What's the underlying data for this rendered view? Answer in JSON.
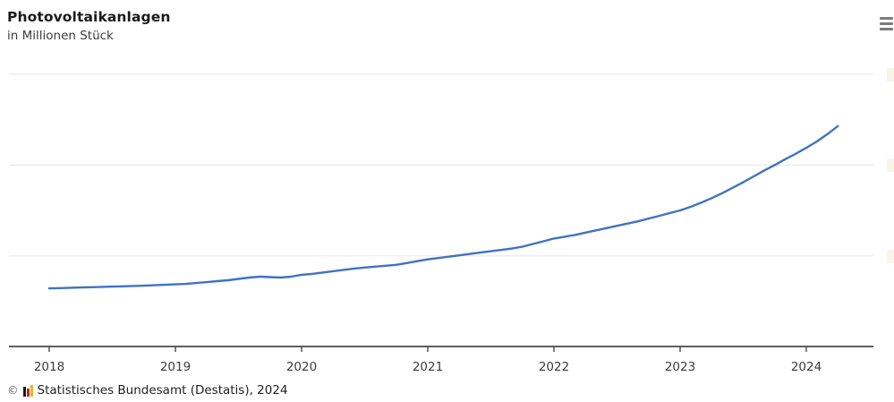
{
  "header": {
    "title": "Photovoltaikanlagen",
    "subtitle": "in Millionen Stück"
  },
  "menu": {
    "icon": "hamburger-menu-icon"
  },
  "chart_data": {
    "type": "line",
    "title": "Photovoltaikanlagen",
    "subtitle": "in Millionen Stück",
    "ylabel": "Millionen Stück",
    "xlabel": "",
    "legend": "none",
    "grid": "horizontal",
    "x_tick_labels": [
      "2018",
      "2019",
      "2020",
      "2021",
      "2022",
      "2023",
      "2024"
    ],
    "frequency": "monthly",
    "start": "2018-01",
    "end": "2024-04",
    "ylim": [
      1,
      4.2
    ],
    "y_gridlines": [
      2,
      3,
      4
    ],
    "series": [
      {
        "name": "Photovoltaikanlagen",
        "color": "#3e73c4",
        "values": [
          1.64,
          1.643,
          1.647,
          1.65,
          1.653,
          1.657,
          1.66,
          1.663,
          1.667,
          1.67,
          1.675,
          1.68,
          1.685,
          1.69,
          1.7,
          1.71,
          1.72,
          1.73,
          1.745,
          1.76,
          1.77,
          1.765,
          1.76,
          1.77,
          1.79,
          1.8,
          1.815,
          1.83,
          1.845,
          1.86,
          1.87,
          1.88,
          1.89,
          1.9,
          1.92,
          1.94,
          1.96,
          1.975,
          1.99,
          2.005,
          2.02,
          2.035,
          2.05,
          2.065,
          2.08,
          2.1,
          2.13,
          2.16,
          2.19,
          2.21,
          2.23,
          2.255,
          2.28,
          2.305,
          2.33,
          2.355,
          2.38,
          2.41,
          2.44,
          2.47,
          2.5,
          2.54,
          2.585,
          2.635,
          2.69,
          2.75,
          2.81,
          2.875,
          2.94,
          3.0,
          3.065,
          3.125,
          3.19,
          3.26,
          3.34,
          3.43
        ]
      }
    ],
    "colors": {
      "line": "#3e73c4",
      "gridline": "#ebebeb",
      "axis": "#4a4a4a",
      "tick_label": "#3c3c3c"
    }
  },
  "footer": {
    "copyright": "©",
    "logo": "destatis-bars-icon",
    "source": "Statistisches Bundesamt (Destatis), 2024"
  }
}
